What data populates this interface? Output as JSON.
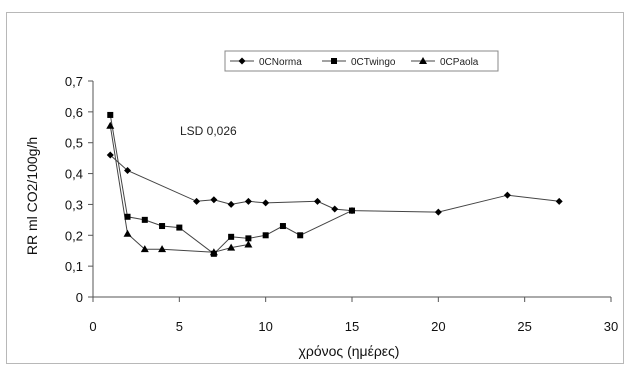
{
  "chart_data": {
    "type": "line",
    "title": "",
    "xlabel": "χρόνος (ημέρες)",
    "ylabel": "RR ml CO2/100g/h",
    "xlim": [
      0,
      30
    ],
    "ylim": [
      0,
      0.7
    ],
    "x_ticks": [
      "0",
      "5",
      "10",
      "15",
      "20",
      "25",
      "30"
    ],
    "y_ticks": [
      "0",
      "0,1",
      "0,2",
      "0,3",
      "0,4",
      "0,5",
      "0,6",
      "0,7"
    ],
    "grid": false,
    "legend_position": "top-right",
    "annotation": "LSD 0,026",
    "series": [
      {
        "name": "0CNorma",
        "marker": "diamond",
        "points": [
          [
            1,
            0.46
          ],
          [
            2,
            0.41
          ],
          [
            6,
            0.31
          ],
          [
            7,
            0.315
          ],
          [
            8,
            0.3
          ],
          [
            9,
            0.31
          ],
          [
            10,
            0.305
          ],
          [
            13,
            0.31
          ],
          [
            14,
            0.285
          ],
          [
            15,
            0.28
          ],
          [
            20,
            0.275
          ],
          [
            24,
            0.33
          ],
          [
            27,
            0.31
          ]
        ]
      },
      {
        "name": "0CTwingo",
        "marker": "square",
        "points": [
          [
            1,
            0.59
          ],
          [
            2,
            0.26
          ],
          [
            3,
            0.25
          ],
          [
            4,
            0.23
          ],
          [
            5,
            0.225
          ],
          [
            7,
            0.14
          ],
          [
            8,
            0.195
          ],
          [
            9,
            0.19
          ],
          [
            10,
            0.2
          ],
          [
            11,
            0.23
          ],
          [
            12,
            0.2
          ],
          [
            15,
            0.28
          ]
        ]
      },
      {
        "name": "0CPaola",
        "marker": "triangle",
        "points": [
          [
            1,
            0.555
          ],
          [
            2,
            0.205
          ],
          [
            3,
            0.155
          ],
          [
            4,
            0.155
          ],
          [
            7,
            0.145
          ],
          [
            8,
            0.16
          ],
          [
            9,
            0.17
          ]
        ]
      }
    ]
  }
}
